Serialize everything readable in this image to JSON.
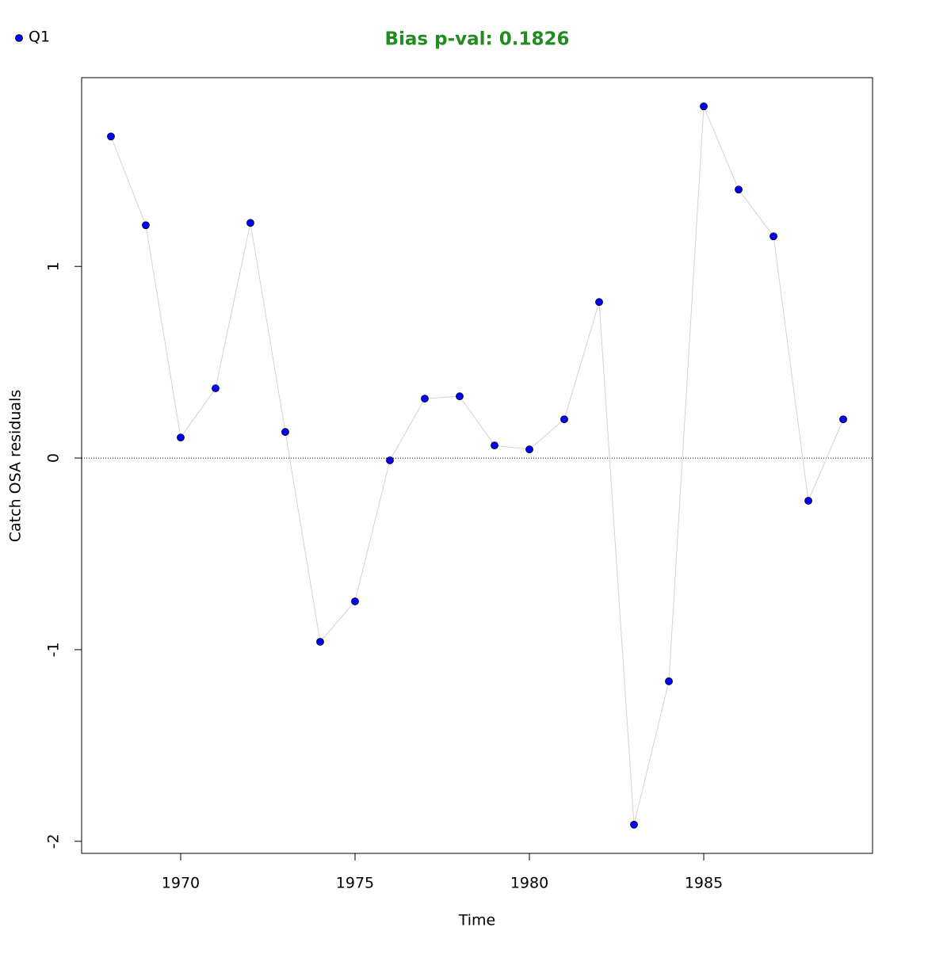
{
  "chart_data": {
    "type": "scatter",
    "title": "Bias p-val: 0.1826",
    "title_color": "#228b22",
    "xlabel": "Time",
    "ylabel": "Catch OSA residuals",
    "x": [
      1968,
      1969,
      1970,
      1971,
      1972,
      1973,
      1974,
      1975,
      1976,
      1977,
      1978,
      1979,
      1980,
      1981,
      1982,
      1983,
      1984,
      1985,
      1986,
      1987,
      1988,
      1989
    ],
    "series": [
      {
        "name": "Q1",
        "color": "#0000ff",
        "line_color": "#d3d3d3",
        "values": [
          1.678,
          1.215,
          0.107,
          0.364,
          1.227,
          0.136,
          -0.959,
          -0.748,
          -0.012,
          0.31,
          0.322,
          0.066,
          0.045,
          0.202,
          0.814,
          -1.913,
          -1.165,
          1.835,
          1.401,
          1.157,
          -0.223,
          0.202
        ]
      }
    ],
    "xlim": [
      1967.16,
      1989.84
    ],
    "xticks": [
      1970,
      1975,
      1980,
      1985
    ],
    "ylim": [
      -2.063,
      1.985
    ],
    "yticks": [
      -2,
      -1,
      0,
      1
    ],
    "hline": 0,
    "legend": "top-left"
  }
}
